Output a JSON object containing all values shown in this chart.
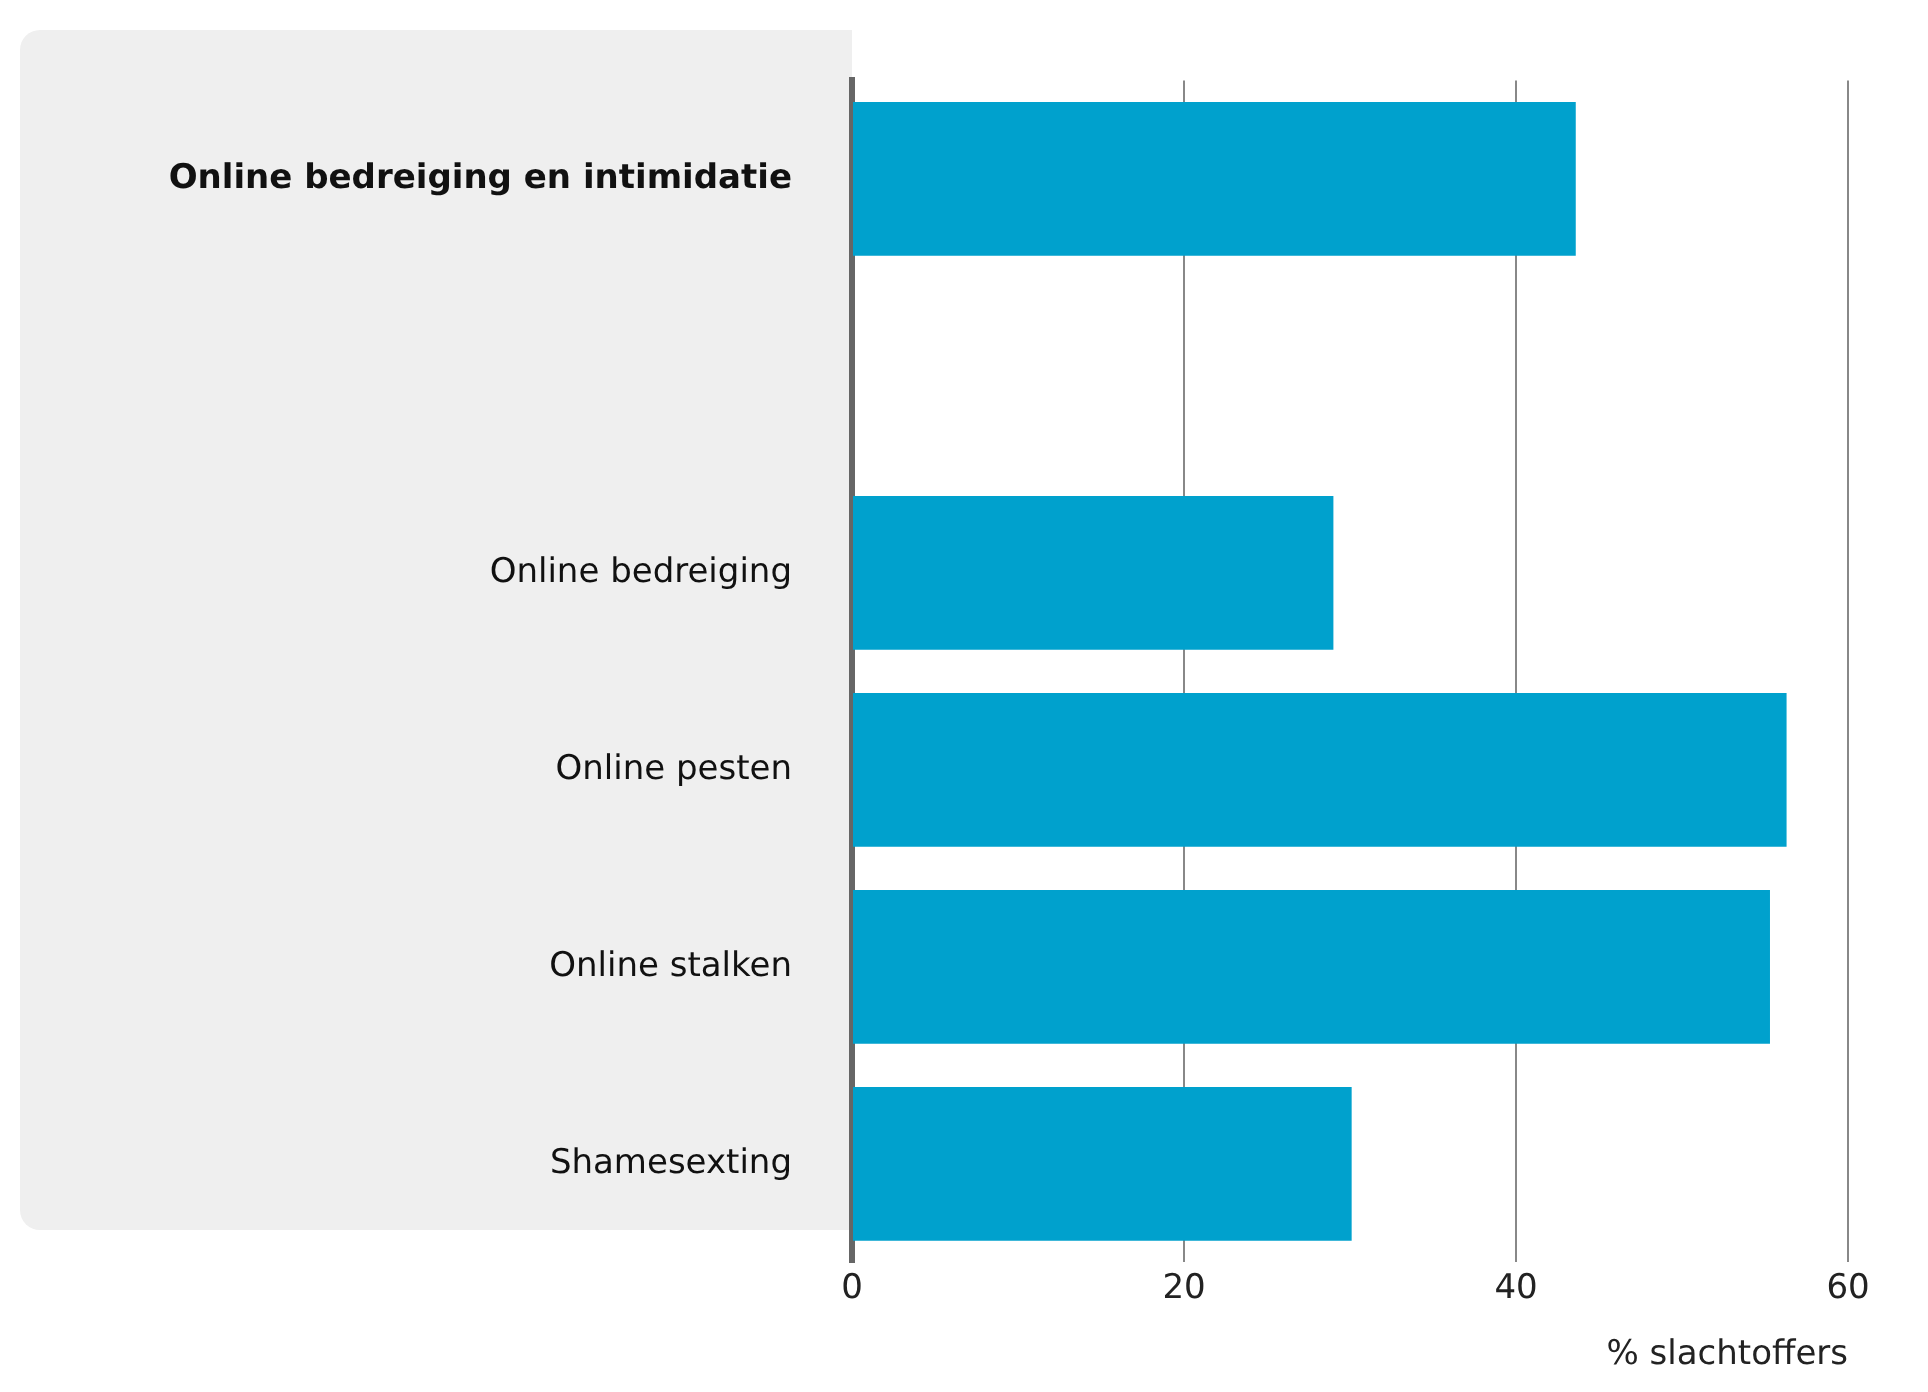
{
  "chart_data": {
    "type": "bar",
    "orientation": "horizontal",
    "categories": [
      "Online bedreiging en intimidatie",
      null,
      "Online bedreiging",
      "Online pesten",
      "Online stalken",
      "Shamesexting"
    ],
    "values": [
      43.6,
      null,
      29.0,
      56.3,
      55.3,
      30.1
    ],
    "color": "#00a1cd",
    "xlabel": "% slachtoffers",
    "xlim": [
      0,
      60
    ],
    "xticks": [
      0,
      20,
      40,
      60
    ],
    "grid": "x",
    "legend": false
  }
}
